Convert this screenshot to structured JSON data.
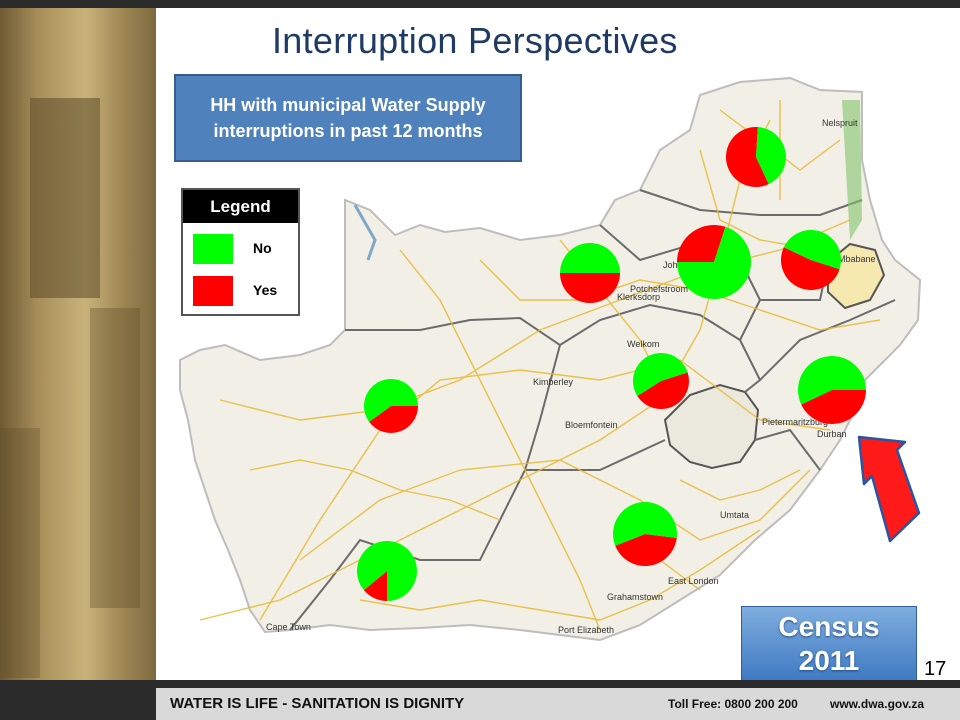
{
  "slide": {
    "title": "Interruption Perspectives",
    "page_number": "17"
  },
  "info_box": {
    "line1": "HH with municipal Water Supply",
    "line2": "interruptions in past 12 months"
  },
  "legend": {
    "heading": "Legend",
    "items": [
      {
        "label": "No",
        "color": "#00ff00"
      },
      {
        "label": "Yes",
        "color": "#ff0000"
      }
    ]
  },
  "map": {
    "cities": [
      "Nelspruit",
      "Johannesburg",
      "Potchefstroom",
      "Klerksdorp",
      "Welkom",
      "Kimberley",
      "Bloemfontein",
      "Pietermaritzburg",
      "Durban",
      "Umtata",
      "East London",
      "Grahamstown",
      "Port Elizabeth",
      "Cape Town",
      "Mbabane"
    ],
    "pies": [
      {
        "region": "Limpopo",
        "yes_share": 0.58
      },
      {
        "region": "Gauteng",
        "yes_share": 0.3
      },
      {
        "region": "Mpumalanga",
        "yes_share": 0.52
      },
      {
        "region": "North West",
        "yes_share": 0.5
      },
      {
        "region": "Free State",
        "yes_share": 0.46
      },
      {
        "region": "KwaZulu-Natal",
        "yes_share": 0.43
      },
      {
        "region": "Northern Cape",
        "yes_share": 0.4
      },
      {
        "region": "Eastern Cape",
        "yes_share": 0.42
      },
      {
        "region": "Western Cape",
        "yes_share": 0.14
      }
    ],
    "colors": {
      "no": "#00ff00",
      "yes": "#ff0000",
      "land": "#f2f0e6",
      "roads": "#e8b830",
      "border": "#6b6b6b"
    }
  },
  "badge": {
    "line1": "Census",
    "line2": "2011"
  },
  "footer": {
    "slogan": "WATER IS LIFE - SANITATION IS DIGNITY",
    "toll_free": "Toll Free: 0800 200 200",
    "website": "www.dwa.gov.za"
  }
}
